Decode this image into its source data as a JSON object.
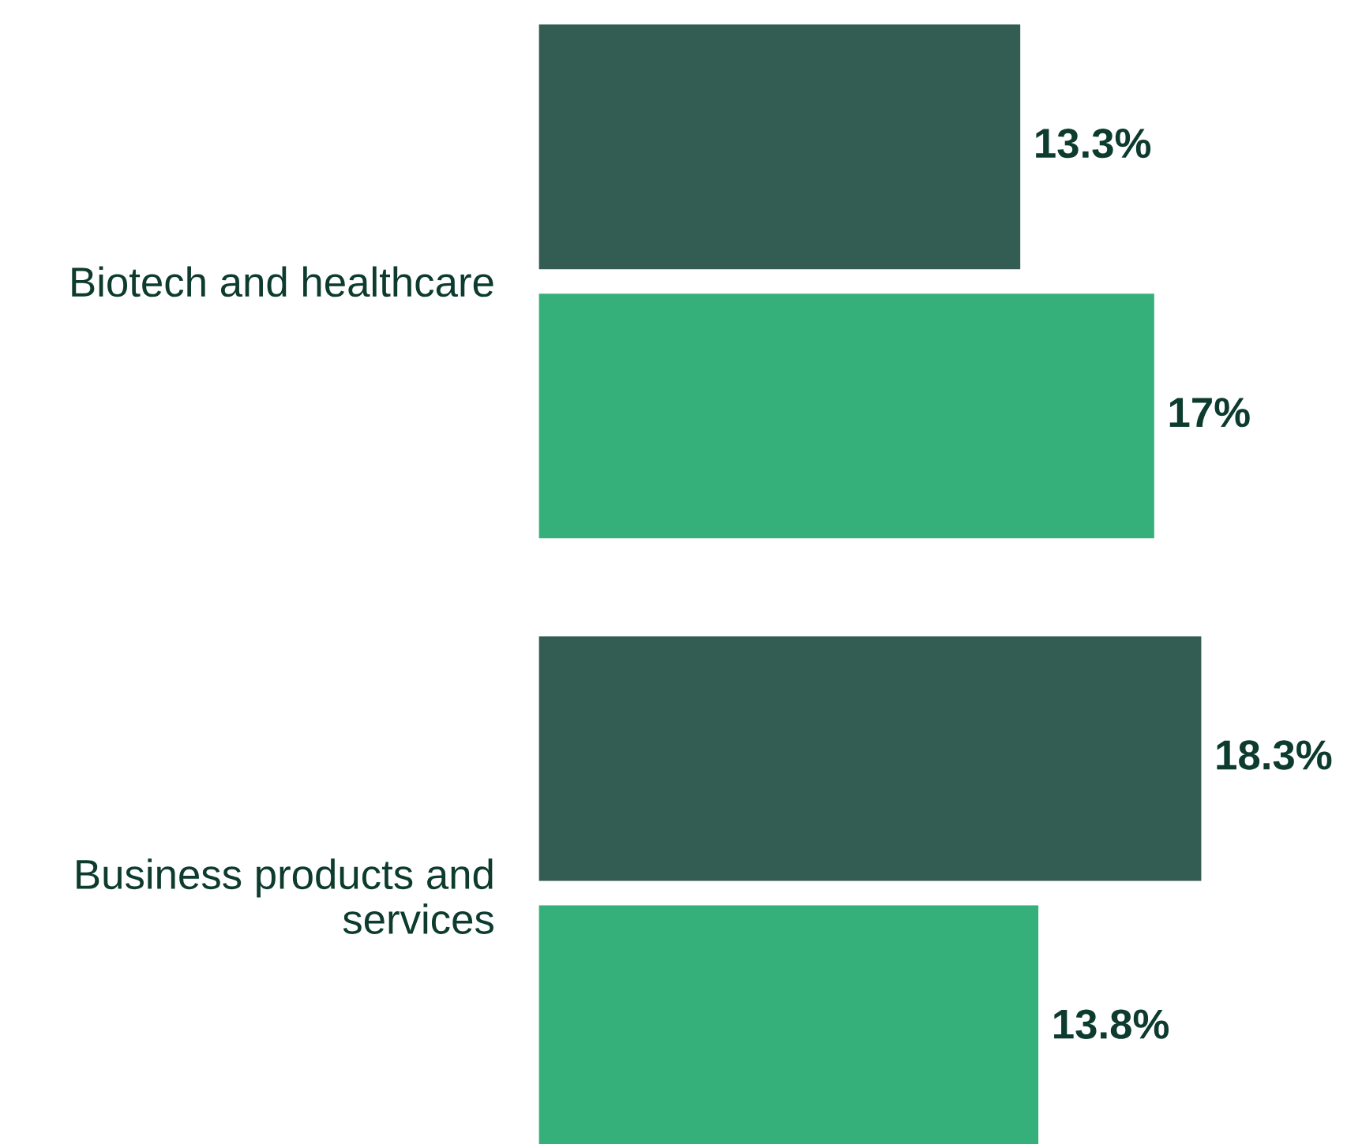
{
  "chart_data": {
    "type": "bar",
    "orientation": "horizontal",
    "categories": [
      "Biotech and healthcare",
      "Business products and\nservices"
    ],
    "series": [
      {
        "color": "#335c52",
        "values": [
          13.3,
          18.3
        ],
        "value_labels": [
          "13.3%",
          "18.3%"
        ]
      },
      {
        "color": "#35b07a",
        "values": [
          17,
          13.8
        ],
        "value_labels": [
          "17%",
          "13.8%"
        ]
      }
    ]
  }
}
